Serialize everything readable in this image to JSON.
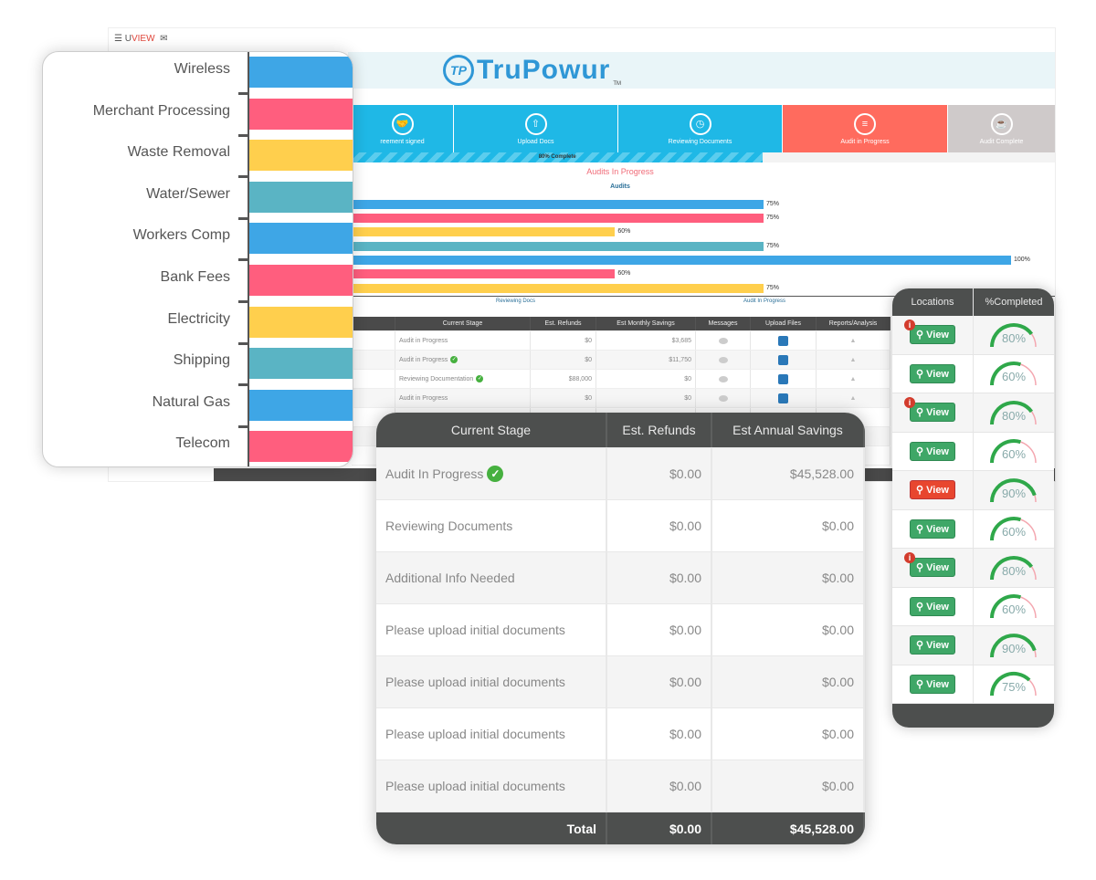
{
  "app": {
    "menu_icon": "hamburger-icon",
    "brand_u": "U",
    "brand_view": "VIEW",
    "logo_mark": "TP",
    "logo_text": "TruPowur",
    "logo_tm": "TM"
  },
  "steps": [
    {
      "label": "reement signed",
      "icon": "handshake-icon",
      "color": "#1fb8e6"
    },
    {
      "label": "Upload Docs",
      "icon": "cloud-upload-icon",
      "color": "#1fb8e6"
    },
    {
      "label": "Reviewing Documents",
      "icon": "clock-icon",
      "color": "#1fb8e6"
    },
    {
      "label": "Audit in Progress",
      "icon": "server-icon",
      "color": "#ff6b5e"
    },
    {
      "label": "Audit Complete",
      "icon": "coffee-icon",
      "color": "#cfcaca"
    }
  ],
  "progress": {
    "label": "80% Complete",
    "value": 80
  },
  "audits_in_progress": "Audits In Progress",
  "chart_data": {
    "type": "bar",
    "orientation": "horizontal",
    "title": "Audits",
    "values": [
      75,
      75,
      60,
      75,
      100,
      60,
      75
    ],
    "value_labels": [
      "75%",
      "75%",
      "60%",
      "75%",
      "100%",
      "60%",
      "75%"
    ],
    "colors": [
      "#3ea6e6",
      "#ff5e7e",
      "#ffcf4d",
      "#5ab4c4",
      "#3ea6e6",
      "#ff5e7e",
      "#ffcf4d"
    ],
    "xlim": [
      0,
      100
    ],
    "x_ticks": [
      {
        "value": 50,
        "label": "Reviewing Docs"
      },
      {
        "value": 75,
        "label": "Audit In Progress"
      }
    ]
  },
  "bg_table": {
    "headers": [
      "Current Stage",
      "Est. Refunds",
      "Est Monthly Savings",
      "Messages",
      "Upload Files",
      "Reports/Analysis"
    ],
    "rows": [
      {
        "stage": "Audit in Progress",
        "check": false,
        "refunds": "$0",
        "savings": "$3,685"
      },
      {
        "stage": "Audit in Progress",
        "check": true,
        "refunds": "$0",
        "savings": "$11,750"
      },
      {
        "stage": "Reviewing Documentation",
        "check": true,
        "refunds": "$88,000",
        "savings": "$0"
      },
      {
        "stage": "Audit in Progress",
        "check": false,
        "refunds": "$0",
        "savings": "$0"
      }
    ]
  },
  "categories": [
    {
      "label": "Wireless",
      "color": "#3ea6e6"
    },
    {
      "label": "Merchant Processing",
      "color": "#ff5e7e"
    },
    {
      "label": "Waste Removal",
      "color": "#ffcf4d"
    },
    {
      "label": "Water/Sewer",
      "color": "#5ab4c4"
    },
    {
      "label": "Workers Comp",
      "color": "#3ea6e6"
    },
    {
      "label": "Bank Fees",
      "color": "#ff5e7e"
    },
    {
      "label": "Electricity",
      "color": "#ffcf4d"
    },
    {
      "label": "Shipping",
      "color": "#5ab4c4"
    },
    {
      "label": "Natural Gas",
      "color": "#3ea6e6"
    },
    {
      "label": "Telecom",
      "color": "#ff5e7e"
    }
  ],
  "front_table": {
    "headers": [
      "Current Stage",
      "Est. Refunds",
      "Est Annual Savings"
    ],
    "rows": [
      {
        "stage": "Audit In Progress",
        "check": true,
        "refunds": "$0.00",
        "savings": "$45,528.00"
      },
      {
        "stage": "Reviewing Documents",
        "check": false,
        "refunds": "$0.00",
        "savings": "$0.00"
      },
      {
        "stage": "Additional Info Needed",
        "check": false,
        "refunds": "$0.00",
        "savings": "$0.00"
      },
      {
        "stage": "Please upload initial documents",
        "check": false,
        "refunds": "$0.00",
        "savings": "$0.00"
      },
      {
        "stage": "Please upload initial documents",
        "check": false,
        "refunds": "$0.00",
        "savings": "$0.00"
      },
      {
        "stage": "Please upload initial documents",
        "check": false,
        "refunds": "$0.00",
        "savings": "$0.00"
      },
      {
        "stage": "Please upload initial documents",
        "check": false,
        "refunds": "$0.00",
        "savings": "$0.00"
      }
    ],
    "total": {
      "label": "Total",
      "refunds": "$0.00",
      "savings": "$45,528.00"
    }
  },
  "locations": {
    "headers": [
      "Locations",
      "%Completed"
    ],
    "view_label": "View",
    "rows": [
      {
        "info": true,
        "alert": false,
        "pct": 80
      },
      {
        "info": false,
        "alert": false,
        "pct": 60
      },
      {
        "info": true,
        "alert": false,
        "pct": 80
      },
      {
        "info": false,
        "alert": false,
        "pct": 60
      },
      {
        "info": false,
        "alert": true,
        "pct": 90
      },
      {
        "info": false,
        "alert": false,
        "pct": 60
      },
      {
        "info": true,
        "alert": false,
        "pct": 80
      },
      {
        "info": false,
        "alert": false,
        "pct": 60
      },
      {
        "info": false,
        "alert": false,
        "pct": 90
      },
      {
        "info": false,
        "alert": false,
        "pct": 75
      }
    ]
  }
}
